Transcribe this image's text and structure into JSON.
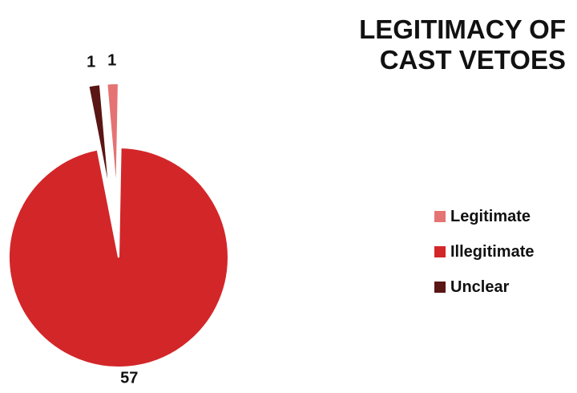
{
  "chart_data": {
    "type": "pie",
    "title_lines": [
      "LEGITIMACY OF",
      "CAST VETOES"
    ],
    "categories": [
      "Legitimate",
      "Illegitimate",
      "Unclear"
    ],
    "values": [
      1,
      57,
      1
    ],
    "colors": [
      "#e57373",
      "#d32629",
      "#5a1515"
    ],
    "legend_position": "right",
    "data_labels": [
      "1",
      "57",
      "1"
    ]
  }
}
